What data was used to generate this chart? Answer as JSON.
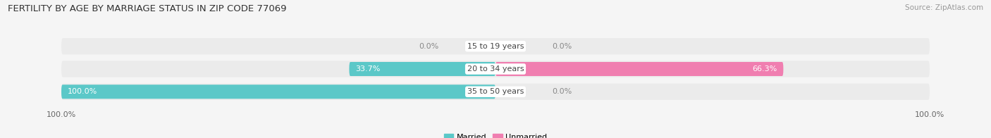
{
  "title": "FERTILITY BY AGE BY MARRIAGE STATUS IN ZIP CODE 77069",
  "source": "Source: ZipAtlas.com",
  "age_groups": [
    "15 to 19 years",
    "20 to 34 years",
    "35 to 50 years"
  ],
  "married": [
    0.0,
    33.7,
    100.0
  ],
  "unmarried": [
    0.0,
    66.3,
    0.0
  ],
  "married_color": "#5BC8C8",
  "unmarried_color": "#F07EB0",
  "bg_color": "#F5F5F5",
  "bar_bg_color": "#E2E2E2",
  "row_bg_color": "#EBEBEB",
  "title_fontsize": 9.5,
  "source_fontsize": 7.5,
  "label_fontsize": 8,
  "tick_fontsize": 8,
  "center_label_bg": "#FFFFFF"
}
